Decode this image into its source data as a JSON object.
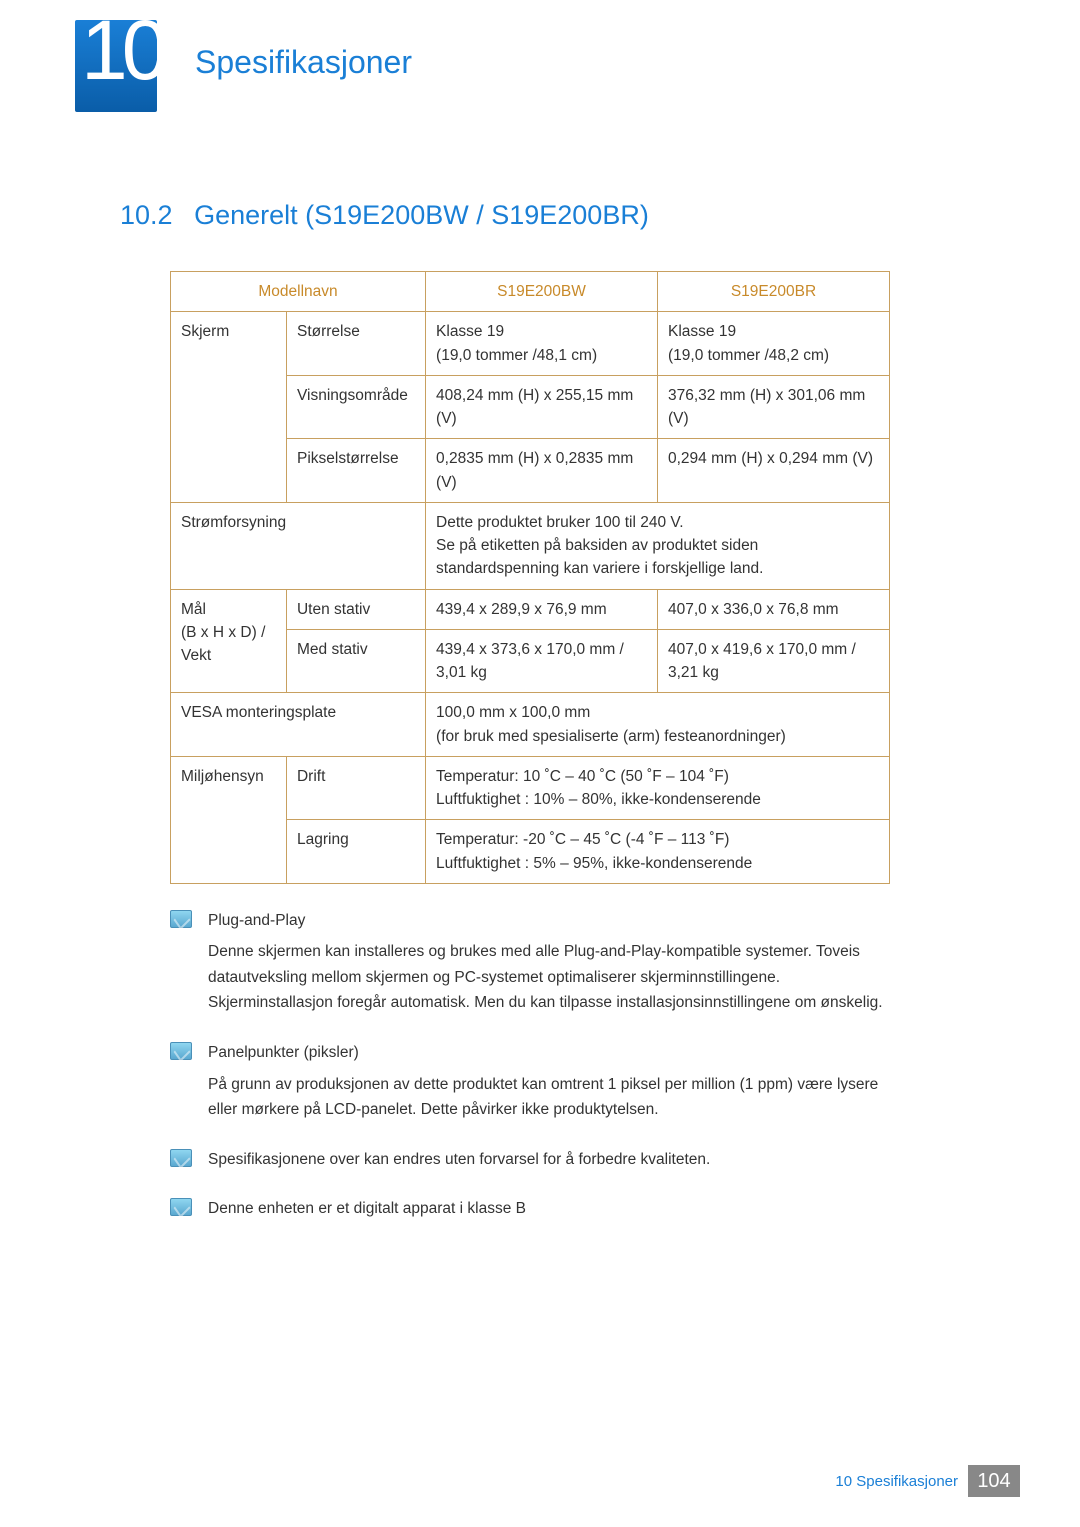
{
  "header": {
    "chapter_number": "10",
    "chapter_title": "Spesifikasjoner"
  },
  "section": {
    "number": "10.2",
    "title": "Generelt (S19E200BW / S19E200BR)"
  },
  "table": {
    "columns": [
      "Modellnavn",
      "S19E200BW",
      "S19E200BR"
    ],
    "border_color": "#c8a060",
    "header_color": "#c88a2a",
    "rows": {
      "skjerm_label": "Skjerm",
      "storrelse_label": "Størrelse",
      "storrelse_bw": "Klasse 19\n(19,0 tommer /48,1 cm)",
      "storrelse_br": "Klasse 19\n(19,0 tommer /48,2 cm)",
      "visning_label": "Visningsområde",
      "visning_bw": "408,24 mm (H) x 255,15 mm (V)",
      "visning_br": "376,32 mm (H) x 301,06 mm (V)",
      "piksel_label": "Pikselstørrelse",
      "piksel_bw": "0,2835 mm (H) x 0,2835 mm (V)",
      "piksel_br": "0,294 mm (H) x 0,294 mm (V)",
      "strom_label": "Strømforsyning",
      "strom_val": "Dette produktet bruker 100 til 240 V.\nSe på etiketten på baksiden av produktet siden standardspenning kan variere i forskjellige land.",
      "mal_label": "Mål\n(B x H x D) /\nVekt",
      "uten_label": "Uten stativ",
      "uten_bw": "439,4 x 289,9 x 76,9 mm",
      "uten_br": "407,0 x 336,0 x 76,8 mm",
      "med_label": "Med stativ",
      "med_bw": "439,4 x 373,6 x 170,0 mm / 3,01 kg",
      "med_br": "407,0 x 419,6 x 170,0 mm / 3,21 kg",
      "vesa_label": "VESA monteringsplate",
      "vesa_val": "100,0 mm x 100,0 mm\n(for bruk med spesialiserte (arm) festeanordninger)",
      "miljo_label": "Miljøhensyn",
      "drift_label": "Drift",
      "drift_val": "Temperatur: 10 ˚C – 40 ˚C (50 ˚F – 104 ˚F)\nLuftfuktighet : 10% – 80%, ikke-kondenserende",
      "lagring_label": "Lagring",
      "lagring_val": "Temperatur: -20 ˚C – 45 ˚C (-4 ˚F – 113 ˚F)\nLuftfuktighet : 5% – 95%, ikke-kondenserende"
    }
  },
  "notes": [
    {
      "title": "Plug-and-Play",
      "body": "Denne skjermen kan installeres og brukes med alle Plug-and-Play-kompatible systemer. Toveis datautveksling mellom skjermen og PC-systemet optimaliserer skjerminnstillingene. Skjerminstallasjon foregår automatisk. Men du kan tilpasse installasjonsinnstillingene om ønskelig."
    },
    {
      "title": "Panelpunkter (piksler)",
      "body": "På grunn av produksjonen av dette produktet kan omtrent 1 piksel per million (1 ppm) være lysere eller mørkere på LCD-panelet. Dette påvirker ikke produktytelsen."
    },
    {
      "title": "",
      "body": "Spesifikasjonene over kan endres uten forvarsel for å forbedre kvaliteten."
    },
    {
      "title": "",
      "body": "Denne enheten er et digitalt apparat i klasse B"
    }
  ],
  "footer": {
    "label": "10 Spesifikasjoner",
    "page": "104"
  },
  "colors": {
    "brand_blue": "#1a7fd6",
    "table_border": "#c8a060",
    "table_header_text": "#c88a2a",
    "footer_box": "#888888"
  }
}
